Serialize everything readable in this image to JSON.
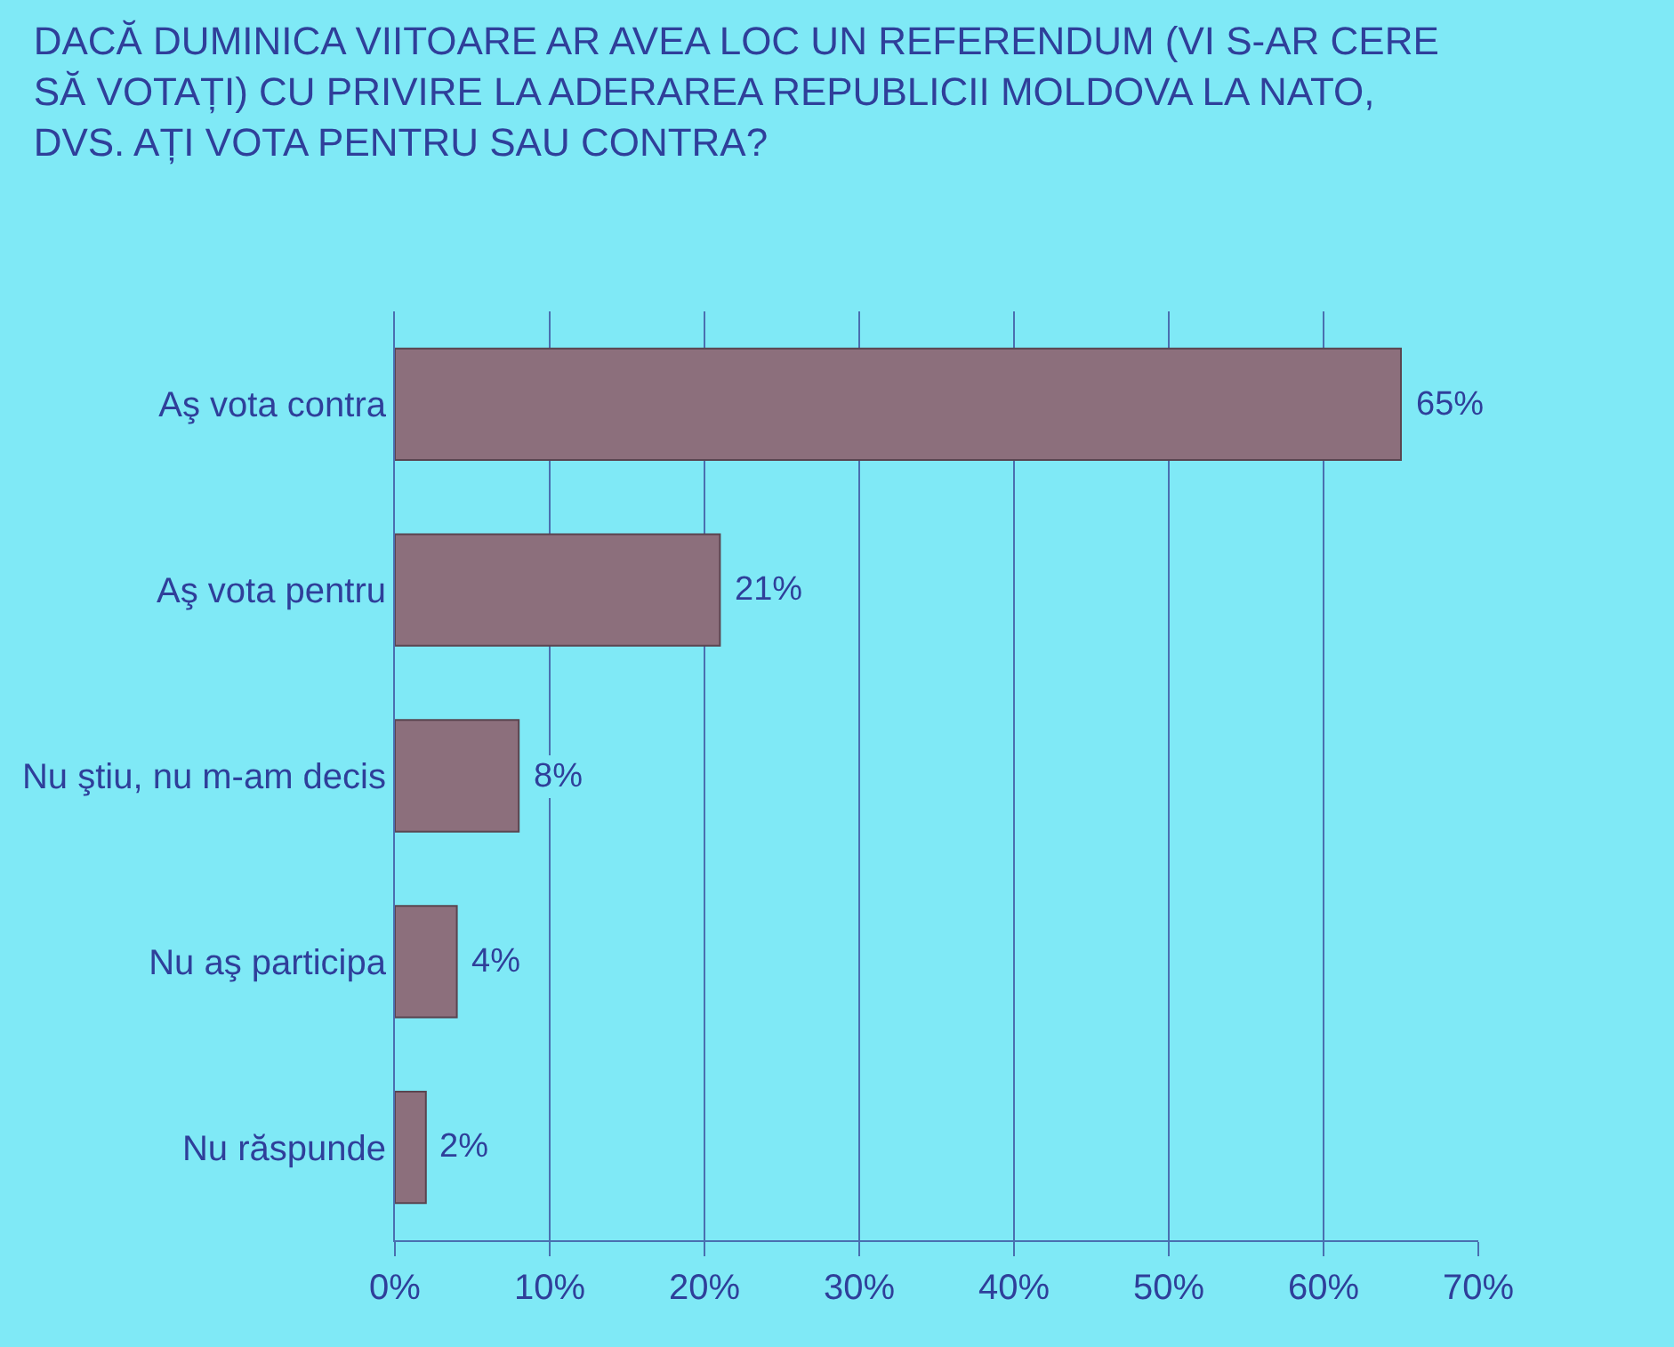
{
  "chart_data": {
    "type": "bar",
    "orientation": "horizontal",
    "title": "DACĂ DUMINICA VIITOARE AR AVEA LOC UN REFERENDUM (VI S-AR CERE SĂ VOTAȚI) CU PRIVIRE LA ADERAREA REPUBLICII MOLDOVA LA NATO, DVS. AȚI VOTA PENTRU SAU CONTRA?",
    "categories": [
      "Aş vota contra",
      "Aş vota pentru",
      "Nu ştiu, nu m-am decis",
      "Nu aş participa",
      "Nu răspunde"
    ],
    "values": [
      65,
      21,
      8,
      4,
      2
    ],
    "value_labels": [
      "65%",
      "21%",
      "8%",
      "4%",
      "2%"
    ],
    "color": "#8c6f7c",
    "xlim": [
      0,
      70
    ],
    "xticks": [
      {
        "value": 0,
        "label": "0%"
      },
      {
        "value": 10,
        "label": "10%"
      },
      {
        "value": 20,
        "label": "20%"
      },
      {
        "value": 30,
        "label": "30%"
      },
      {
        "value": 40,
        "label": "40%"
      },
      {
        "value": 50,
        "label": "50%"
      },
      {
        "value": 60,
        "label": "60%"
      },
      {
        "value": 70,
        "label": "70%"
      }
    ],
    "grid": "x"
  }
}
